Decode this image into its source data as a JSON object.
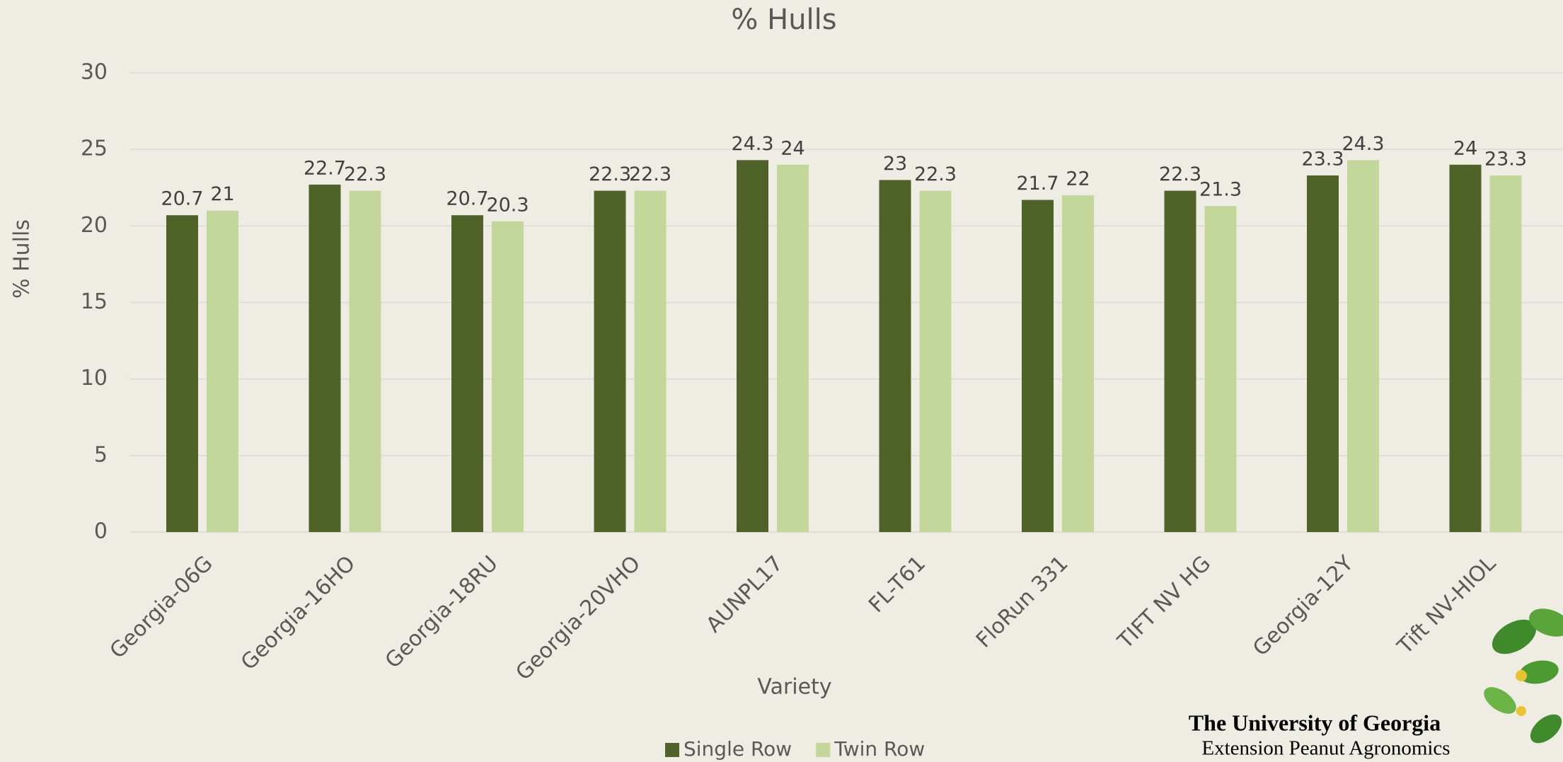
{
  "chart_data": {
    "type": "bar",
    "title": "% Hulls",
    "x_label": "Variety",
    "y_label": "% Hulls",
    "categories": [
      "Georgia-06G",
      "Georgia-16HO",
      "Georgia-18RU",
      "Georgia-20VHO",
      "AUNPL17",
      "FL-T61",
      "FloRun 331",
      "TIFT NV HG",
      "Georgia-12Y",
      "Tift NV-HIOL"
    ],
    "series": [
      {
        "name": "Single Row",
        "color": "#4f6228",
        "values": [
          20.7,
          22.7,
          20.7,
          22.3,
          24.3,
          23,
          21.7,
          22.3,
          23.3,
          24
        ]
      },
      {
        "name": "Twin Row",
        "color": "#c4d79b",
        "values": [
          21,
          22.3,
          20.3,
          22.3,
          24,
          22.3,
          22,
          21.3,
          24.3,
          23.3
        ]
      }
    ],
    "ylim": [
      0,
      30
    ],
    "yticks": [
      0,
      5,
      10,
      15,
      20,
      25,
      30
    ],
    "grid": true,
    "legend": "bottom"
  },
  "branding": {
    "title": "The University of Georgia",
    "subtitle": "Extension Peanut Agronomics"
  }
}
